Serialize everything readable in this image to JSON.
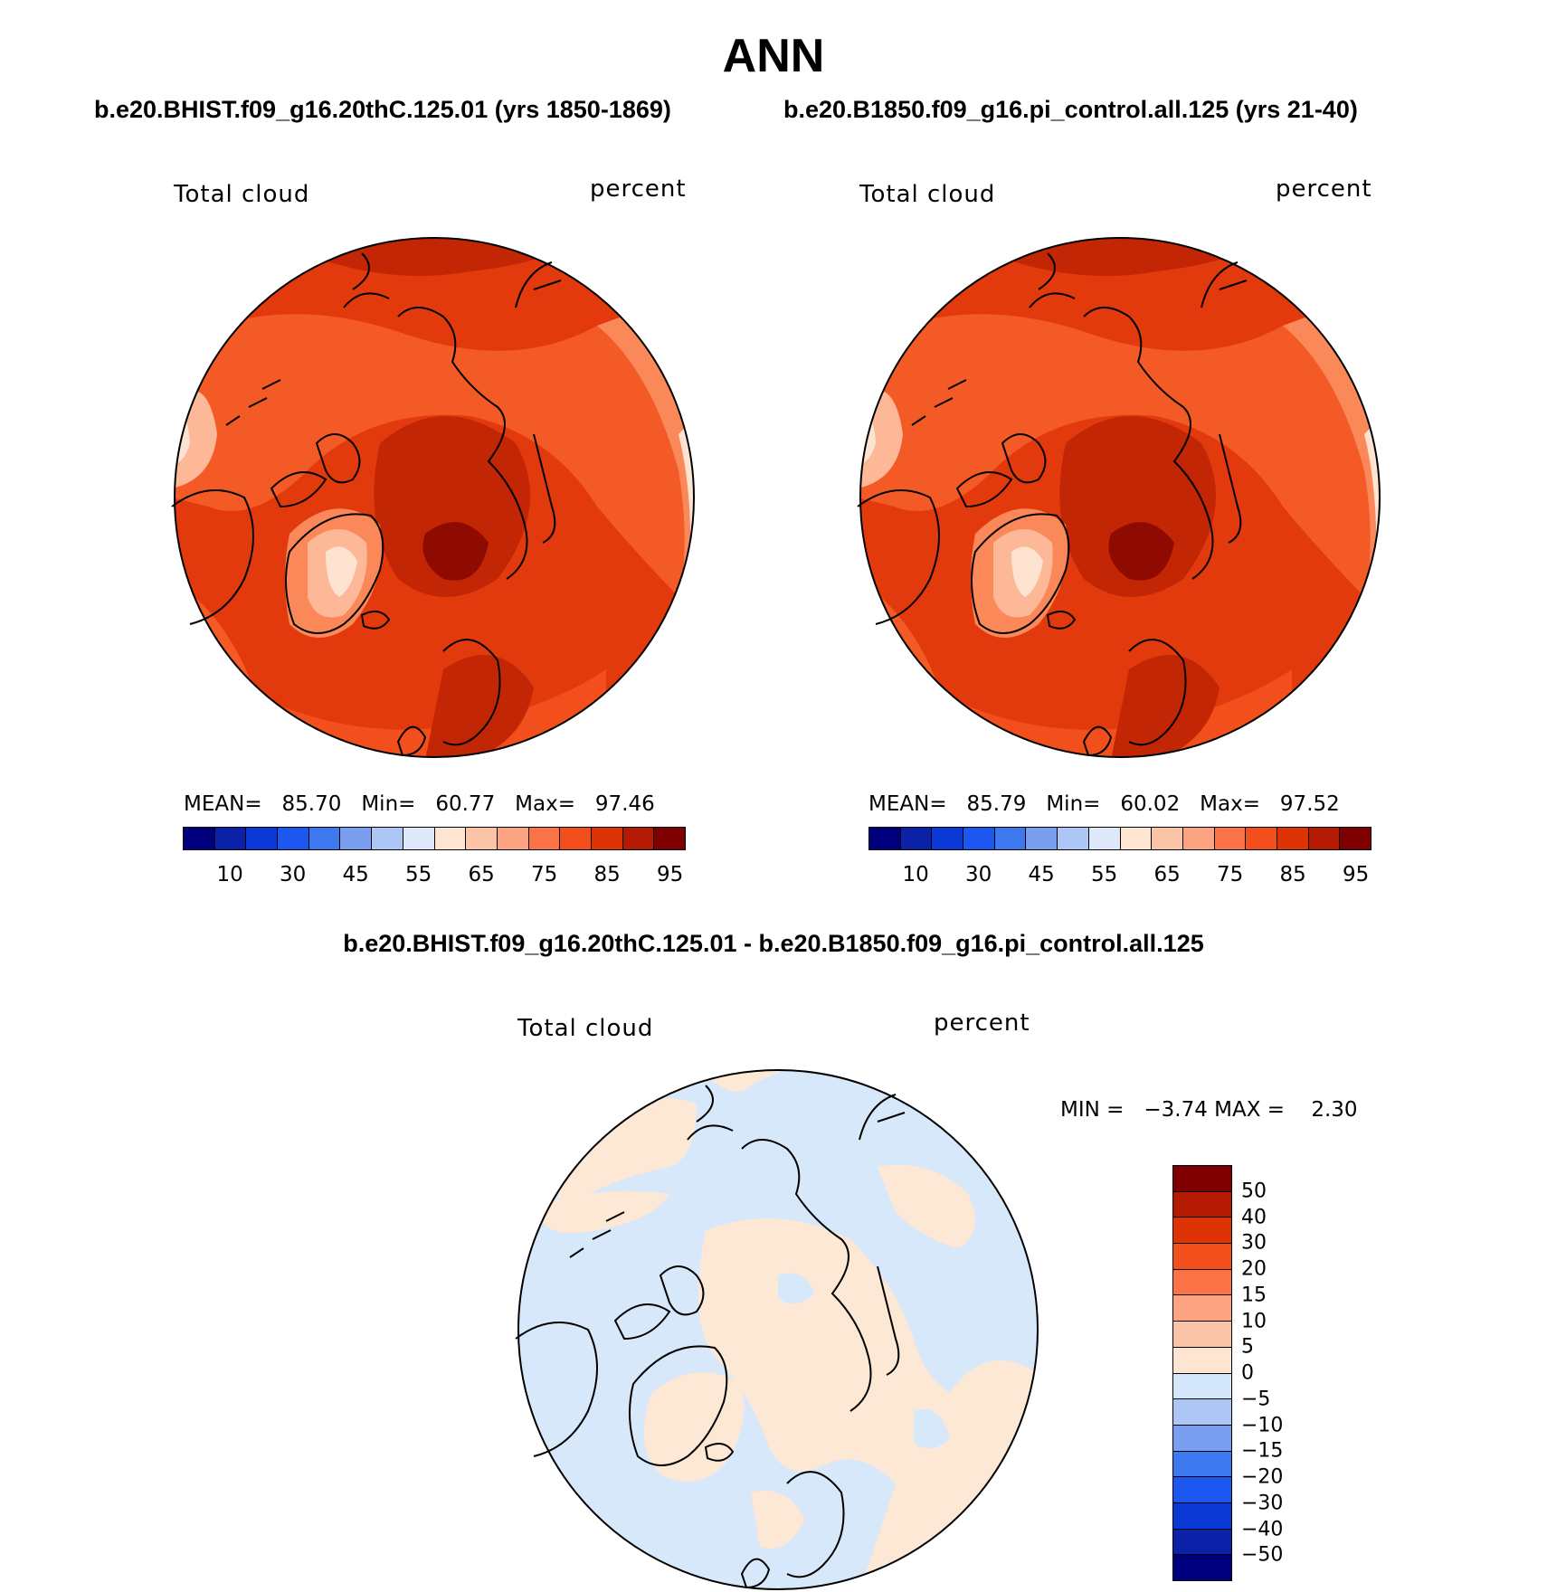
{
  "header": {
    "title": "ANN",
    "left_case": "b.e20.BHIST.f09_g16.20thC.125.01 (yrs 1850-1869)",
    "right_case": "b.e20.B1850.f09_g16.pi_control.all.125 (yrs 21-40)"
  },
  "panels": [
    {
      "variable": "Total cloud",
      "units": "percent",
      "stats": {
        "mean_label": "MEAN=",
        "mean": "85.70",
        "min_label": "Min=",
        "min": "60.77",
        "max_label": "Max=",
        "max": "97.46"
      }
    },
    {
      "variable": "Total cloud",
      "units": "percent",
      "stats": {
        "mean_label": "MEAN=",
        "mean": "85.79",
        "min_label": "Min=",
        "min": "60.02",
        "max_label": "Max=",
        "max": "97.52"
      }
    }
  ],
  "diff_panel": {
    "title": "b.e20.BHIST.f09_g16.20thC.125.01 - b.e20.B1850.f09_g16.pi_control.all.125",
    "variable": "Total cloud",
    "units": "percent",
    "min_label": "MIN =",
    "min": "−3.74",
    "max_label": "MAX =",
    "max": "2.30"
  },
  "colorbar_abs": {
    "colors": [
      "#00007f",
      "#0a21a8",
      "#0a39d6",
      "#1c57f2",
      "#3d78ee",
      "#7a9ef0",
      "#aec6f5",
      "#dde9fb",
      "#fde5d2",
      "#fcc4a7",
      "#fca382",
      "#fa7246",
      "#f24f1d",
      "#de3405",
      "#b51a03",
      "#7f0000"
    ],
    "tick_labels": [
      "10",
      "30",
      "45",
      "55",
      "65",
      "75",
      "85",
      "95"
    ]
  },
  "colorbar_diff": {
    "colors_top_to_bottom": [
      "#7f0000",
      "#b51a03",
      "#de3405",
      "#f24f1d",
      "#fa7246",
      "#fca382",
      "#fcc4a7",
      "#fde5d2",
      "#d4e6fa",
      "#aec6f5",
      "#7a9ef0",
      "#3d78ee",
      "#1c57f2",
      "#0a39d6",
      "#0a21a8",
      "#00007f"
    ],
    "tick_labels": [
      "50",
      "40",
      "30",
      "20",
      "15",
      "10",
      "5",
      "0",
      "−5",
      "−10",
      "−15",
      "−20",
      "−30",
      "−40",
      "−50"
    ]
  },
  "map_colors": {
    "abs_base": "#e23a0c",
    "abs_mid": "#f45a25",
    "abs_dark": "#c22604",
    "abs_darkest": "#8f0a00",
    "abs_light": "#fb8859",
    "abs_lighter": "#fdb898",
    "abs_pale": "#fde3d0",
    "diff_neg": "#d8e8fb",
    "diff_pos": "#fde8d6",
    "coast": "#000000"
  }
}
